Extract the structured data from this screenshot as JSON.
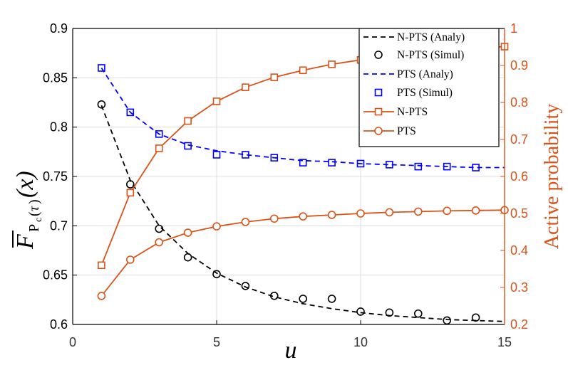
{
  "chart_data": {
    "type": "line",
    "xlabel": "u",
    "ylabel_left_parts": {
      "main": "F",
      "sub_P": "P",
      "sub_c": "c",
      "open": "(",
      "sub_tau": "τ",
      "close": ")",
      "arg": "(x)"
    },
    "ylabel_right": "Active probability",
    "xlim": [
      0,
      15
    ],
    "ylim_left": [
      0.6,
      0.9
    ],
    "ylim_right": [
      0.2,
      1.0
    ],
    "x_ticks": [
      "0",
      "5",
      "10",
      "15"
    ],
    "y_left_ticks": [
      "0.6",
      "0.65",
      "0.7",
      "0.75",
      "0.8",
      "0.85",
      "0.9"
    ],
    "y_right_ticks": [
      "0.2",
      "0.3",
      "0.4",
      "0.5",
      "0.6",
      "0.7",
      "0.8",
      "0.9",
      "1"
    ],
    "grid": true,
    "legend_position": "top-right",
    "colors": {
      "black": "#000000",
      "blue": "#0000FF",
      "orange": "#D95319",
      "grid": "#DCDCDC"
    },
    "series": [
      {
        "name": "N-PTS (Analy)",
        "axis": "left",
        "style": "dashed",
        "color": "#000000",
        "x": [
          1,
          2,
          3,
          4,
          5,
          6,
          7,
          8,
          9,
          10,
          11,
          12,
          13,
          14,
          15
        ],
        "values": [
          0.822,
          0.746,
          0.7,
          0.672,
          0.652,
          0.638,
          0.628,
          0.621,
          0.616,
          0.612,
          0.609,
          0.607,
          0.605,
          0.604,
          0.603
        ]
      },
      {
        "name": "N-PTS (Simul)",
        "axis": "left",
        "style": "marker-circle",
        "color": "#000000",
        "x": [
          1,
          2,
          3,
          4,
          5,
          6,
          7,
          8,
          9,
          10,
          11,
          12,
          13,
          14
        ],
        "values": [
          0.823,
          0.742,
          0.697,
          0.668,
          0.651,
          0.639,
          0.629,
          0.626,
          0.626,
          0.613,
          0.612,
          0.611,
          0.604,
          0.607
        ]
      },
      {
        "name": "PTS (Analy)",
        "axis": "left",
        "style": "dashed",
        "color": "#0000FF",
        "x": [
          1,
          2,
          3,
          4,
          5,
          6,
          7,
          8,
          9,
          10,
          11,
          12,
          13,
          14,
          15
        ],
        "values": [
          0.86,
          0.815,
          0.793,
          0.782,
          0.776,
          0.772,
          0.769,
          0.766,
          0.765,
          0.763,
          0.762,
          0.761,
          0.76,
          0.759,
          0.759
        ]
      },
      {
        "name": "PTS (Simul)",
        "axis": "left",
        "style": "marker-square",
        "color": "#0000FF",
        "x": [
          1,
          2,
          3,
          4,
          5,
          6,
          7,
          8,
          9,
          10,
          11,
          12,
          13,
          14
        ],
        "values": [
          0.86,
          0.815,
          0.793,
          0.781,
          0.772,
          0.772,
          0.769,
          0.764,
          0.764,
          0.763,
          0.762,
          0.76,
          0.76,
          0.759
        ]
      },
      {
        "name": "N-PTS",
        "axis": "right",
        "style": "line-square",
        "color": "#D95319",
        "x": [
          1,
          2,
          3,
          4,
          5,
          6,
          7,
          8,
          9,
          10,
          11,
          12,
          13,
          14,
          15
        ],
        "values": [
          0.36,
          0.556,
          0.676,
          0.75,
          0.803,
          0.841,
          0.868,
          0.887,
          0.903,
          0.915,
          0.925,
          0.933,
          0.94,
          0.946,
          0.951
        ]
      },
      {
        "name": "PTS",
        "axis": "right",
        "style": "line-circle",
        "color": "#D95319",
        "x": [
          1,
          2,
          3,
          4,
          5,
          6,
          7,
          8,
          9,
          10,
          11,
          12,
          13,
          14,
          15
        ],
        "values": [
          0.277,
          0.375,
          0.422,
          0.448,
          0.465,
          0.477,
          0.486,
          0.492,
          0.496,
          0.5,
          0.503,
          0.505,
          0.507,
          0.508,
          0.509
        ]
      }
    ]
  }
}
